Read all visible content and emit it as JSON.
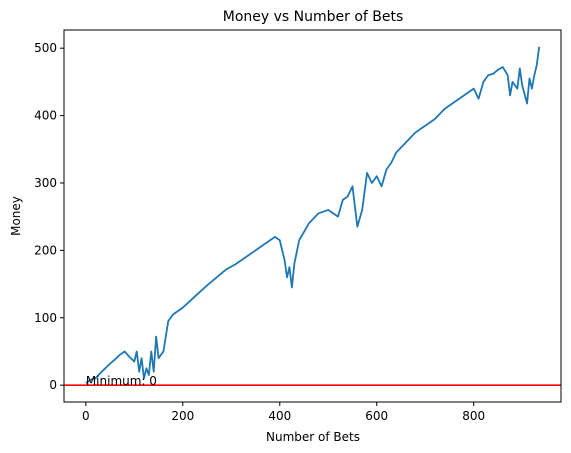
{
  "chart_data": {
    "type": "line",
    "title": "Money vs Number of Bets",
    "xlabel": "Number of Bets",
    "ylabel": "Money",
    "xlim": [
      -45,
      980
    ],
    "ylim": [
      -25,
      527
    ],
    "xticks": [
      0,
      200,
      400,
      600,
      800
    ],
    "yticks": [
      0,
      100,
      200,
      300,
      400,
      500
    ],
    "grid": false,
    "series": [
      {
        "color": "#1f77b4",
        "x": [
          0,
          10,
          20,
          30,
          40,
          50,
          60,
          70,
          80,
          90,
          100,
          105,
          110,
          115,
          120,
          125,
          130,
          135,
          140,
          145,
          150,
          155,
          160,
          170,
          180,
          190,
          200,
          215,
          230,
          250,
          270,
          290,
          310,
          330,
          350,
          370,
          390,
          400,
          405,
          410,
          415,
          420,
          425,
          430,
          440,
          460,
          480,
          500,
          510,
          520,
          530,
          540,
          550,
          560,
          570,
          580,
          590,
          600,
          610,
          620,
          630,
          640,
          660,
          680,
          700,
          720,
          740,
          760,
          780,
          800,
          810,
          820,
          830,
          840,
          850,
          860,
          870,
          875,
          880,
          890,
          895,
          900,
          910,
          915,
          920,
          925,
          930,
          935
        ],
        "y": [
          3,
          8,
          10,
          18,
          25,
          32,
          38,
          45,
          50,
          42,
          35,
          50,
          20,
          40,
          10,
          25,
          15,
          50,
          20,
          72,
          40,
          45,
          50,
          95,
          105,
          110,
          115,
          125,
          135,
          148,
          160,
          172,
          180,
          190,
          200,
          210,
          220,
          215,
          200,
          185,
          160,
          175,
          145,
          180,
          215,
          240,
          255,
          260,
          255,
          250,
          275,
          280,
          295,
          235,
          260,
          315,
          300,
          310,
          295,
          320,
          330,
          345,
          360,
          375,
          385,
          395,
          410,
          420,
          430,
          440,
          425,
          450,
          460,
          462,
          468,
          472,
          460,
          430,
          450,
          440,
          470,
          445,
          418,
          455,
          440,
          460,
          475,
          502
        ]
      }
    ],
    "hline": {
      "value": 0,
      "color": "#ff0000"
    },
    "annotation": {
      "text": "Minimum: 0",
      "x": 0,
      "y": 0
    }
  }
}
